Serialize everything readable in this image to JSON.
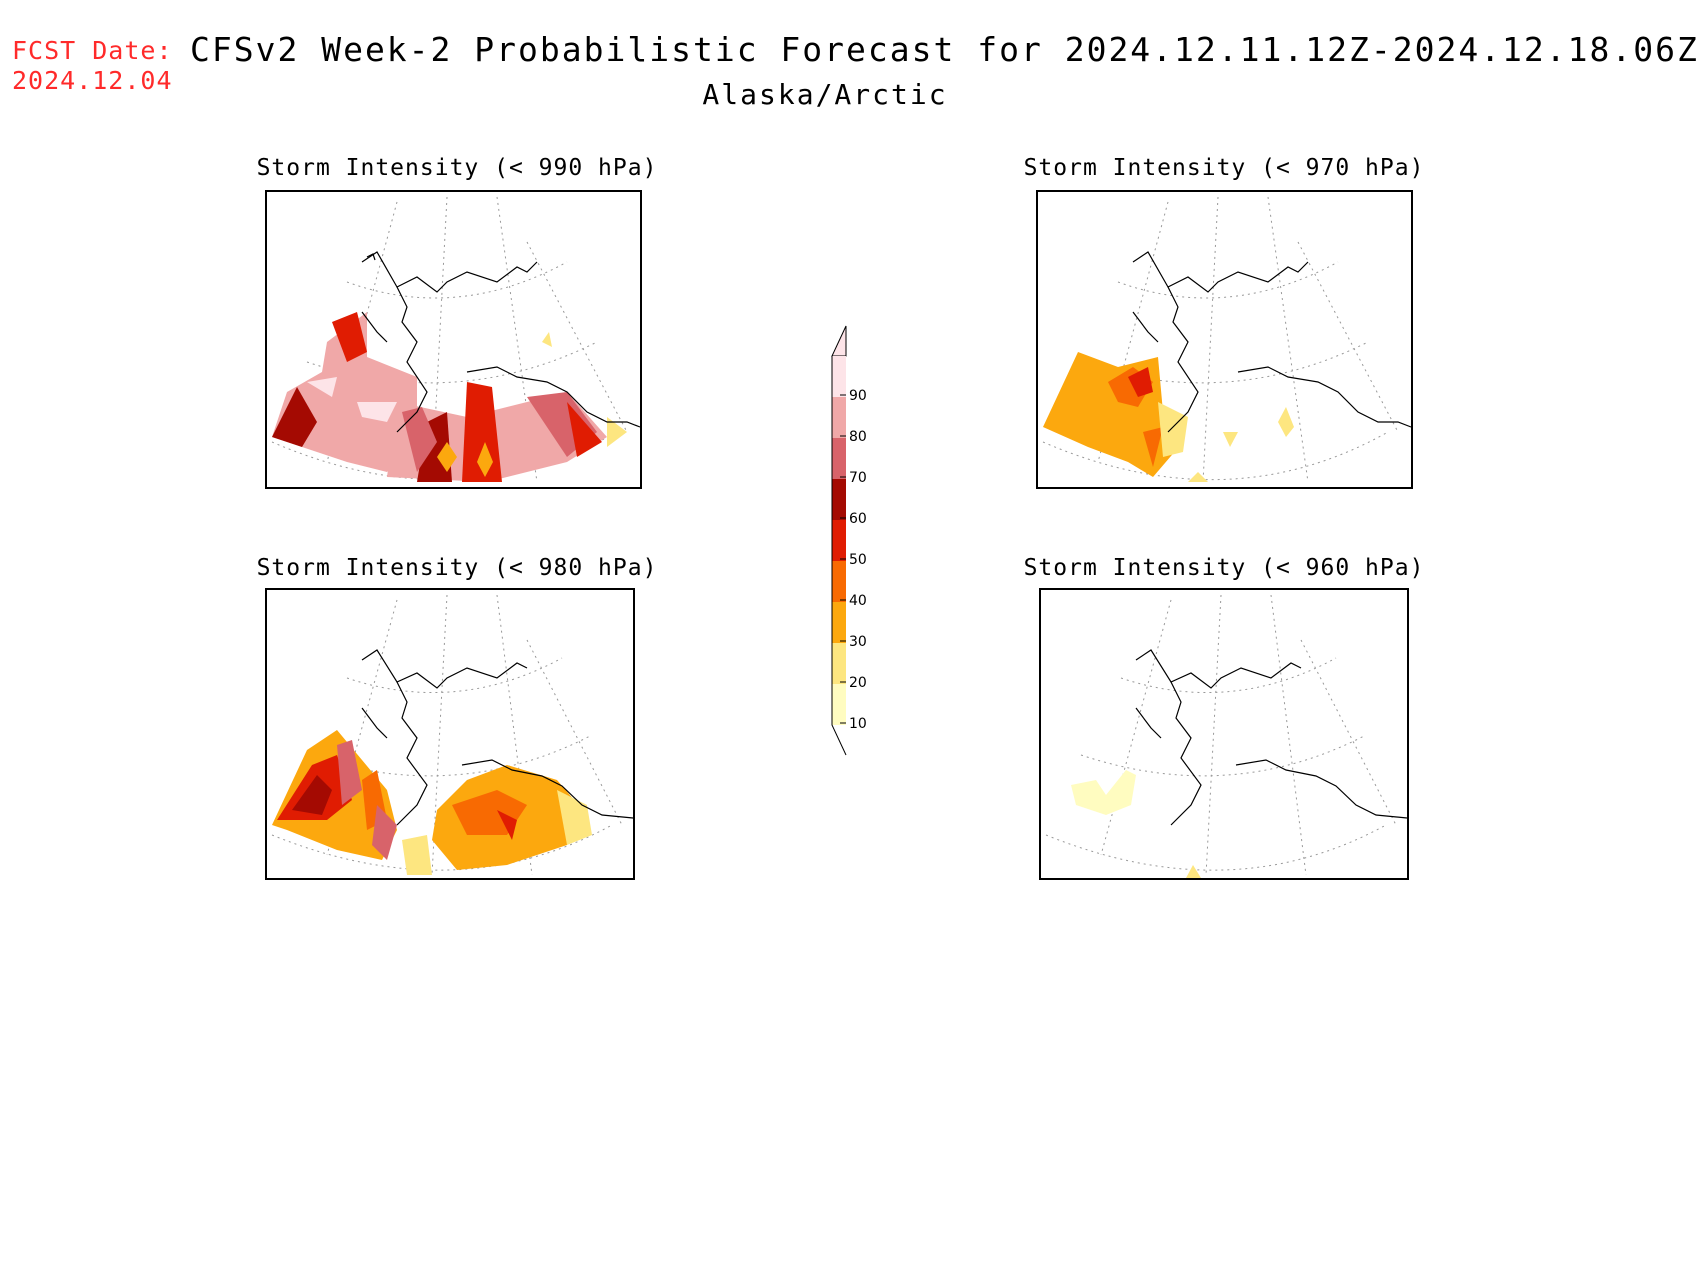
{
  "header": {
    "fcst_label": "FCST Date:",
    "fcst_date": "2024.12.04",
    "title": "CFSv2 Week-2 Probabilistic Forecast for 2024.12.11.12Z-2024.12.18.06Z",
    "region": "Alaska/Arctic"
  },
  "panels": [
    {
      "title": "Storm Intensity (< 990 hPa)",
      "level": "990"
    },
    {
      "title": "Storm Intensity (< 970 hPa)",
      "level": "970"
    },
    {
      "title": "Storm Intensity (< 980 hPa)",
      "level": "980"
    },
    {
      "title": "Storm Intensity (< 960 hPa)",
      "level": "960"
    }
  ],
  "legend": {
    "ticks": [
      "10",
      "20",
      "30",
      "40",
      "50",
      "60",
      "70",
      "80",
      "90"
    ],
    "colors": [
      "#fffcc0",
      "#fde680",
      "#fca80e",
      "#f86a02",
      "#e01c02",
      "#a40a02",
      "#d8636a",
      "#f0a8a8",
      "#fde4e8"
    ]
  }
}
